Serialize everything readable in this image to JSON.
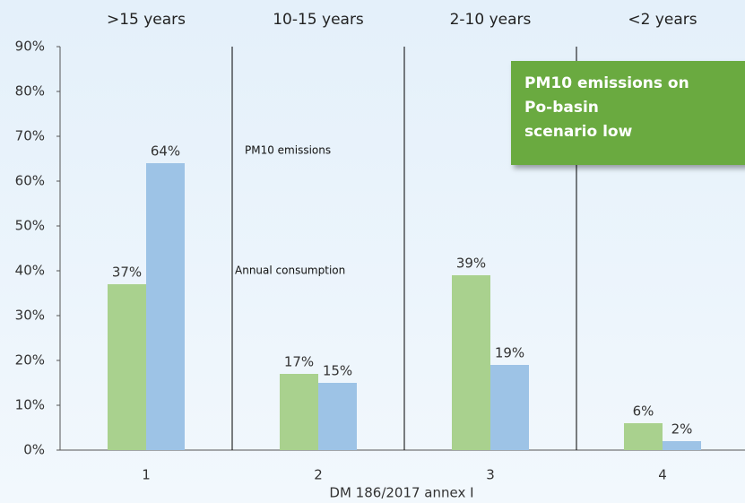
{
  "chart_data": {
    "type": "bar",
    "group_labels": [
      ">15 years",
      "10-15 years",
      "2-10 years",
      "<2 years"
    ],
    "categories": [
      "1",
      "2",
      "3",
      "4"
    ],
    "x_label": "DM 186/2017 annex I",
    "annotation": [
      "PM10 emissions on",
      "Po-basin",
      "scenario low"
    ],
    "series": [
      {
        "name": "Annual consumption",
        "color": "#a9d18e",
        "values": [
          37,
          17,
          39,
          6
        ],
        "value_labels": [
          "37%",
          "17%",
          "39%",
          "6%"
        ]
      },
      {
        "name": "PM10 emissions",
        "color": "#9dc3e6",
        "values": [
          64,
          15,
          19,
          2
        ],
        "value_labels": [
          "64%",
          "15%",
          "19%",
          "2%"
        ]
      }
    ],
    "ylim": [
      0,
      90
    ],
    "yticks": [
      {
        "value": 0,
        "label": "0%"
      },
      {
        "value": 10,
        "label": "10%"
      },
      {
        "value": 20,
        "label": "20%"
      },
      {
        "value": 30,
        "label": "30%"
      },
      {
        "value": 40,
        "label": "40%"
      },
      {
        "value": 50,
        "label": "50%"
      },
      {
        "value": 60,
        "label": "60%"
      },
      {
        "value": 70,
        "label": "70%"
      },
      {
        "value": 80,
        "label": "80%"
      },
      {
        "value": 90,
        "label": "90%"
      }
    ]
  }
}
